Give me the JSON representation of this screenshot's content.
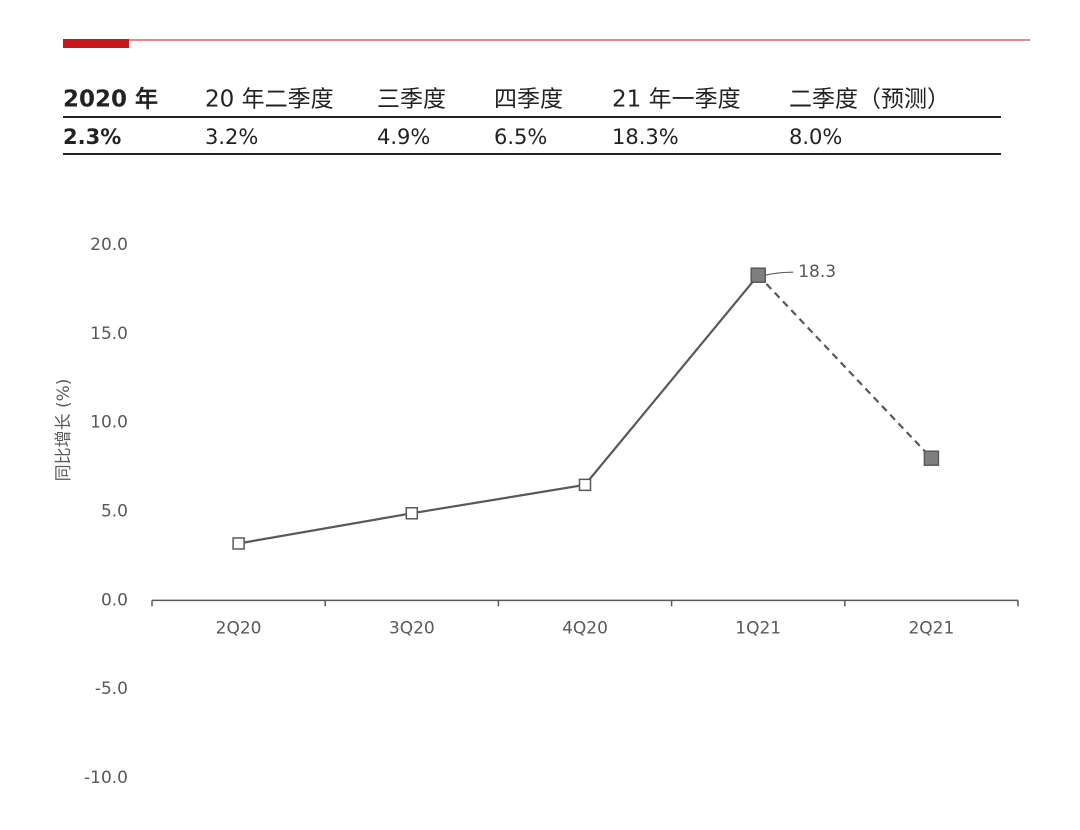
{
  "table": {
    "header": [
      "2020 年",
      "20 年二季度",
      "三季度",
      "四季度",
      "21 年一季度",
      "二季度（预测）"
    ],
    "rows": [
      [
        "2.3%",
        "3.2%",
        "4.9%",
        "6.5%",
        "18.3%",
        "8.0%"
      ]
    ]
  },
  "chart_data": {
    "type": "line",
    "y_label": "同比增长 (%)",
    "categories": [
      "2Q20",
      "3Q20",
      "4Q20",
      "1Q21",
      "2Q21"
    ],
    "values": [
      3.2,
      4.9,
      6.5,
      18.3,
      8.0
    ],
    "value_labels": [
      null,
      null,
      null,
      "18.3",
      null
    ],
    "color": "#595959",
    "marker_fills": [
      "#ffffff",
      "#ffffff",
      "#ffffff",
      "#7f7f7f",
      "#7f7f7f"
    ],
    "dashed_segments": [
      3
    ],
    "ylim": [
      -10,
      20
    ],
    "yticks": [
      {
        "value": -10,
        "label": "-10.0"
      },
      {
        "value": -5,
        "label": "-5.0"
      },
      {
        "value": 0,
        "label": "0.0"
      },
      {
        "value": 5,
        "label": "5.0"
      },
      {
        "value": 10,
        "label": "10.0"
      },
      {
        "value": 15,
        "label": "15.0"
      },
      {
        "value": 20,
        "label": "20.0"
      }
    ],
    "grid": false
  }
}
